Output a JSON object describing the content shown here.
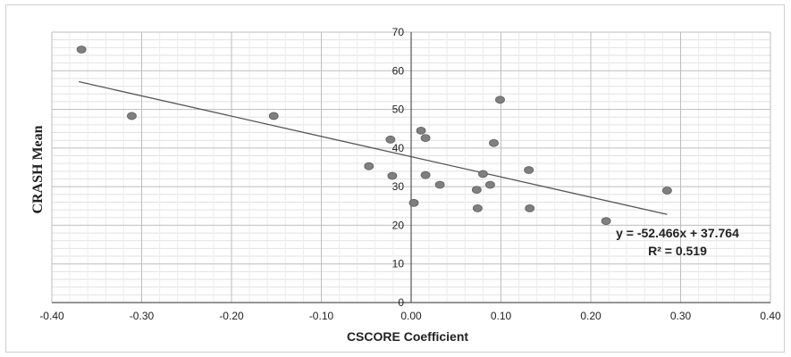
{
  "chart_data": {
    "type": "scatter",
    "xlabel": "CSCORE Coefficient",
    "ylabel": "CRASH Mean",
    "xlim": [
      -0.4,
      0.4
    ],
    "ylim": [
      0,
      70
    ],
    "x_ticks": [
      "-0.40",
      "-0.30",
      "-0.20",
      "-0.10",
      "0.00",
      "0.10",
      "0.20",
      "0.30",
      "0.40"
    ],
    "x_tick_values": [
      -0.4,
      -0.3,
      -0.2,
      -0.1,
      0.0,
      0.1,
      0.2,
      0.3,
      0.4
    ],
    "y_ticks": [
      "0",
      "10",
      "20",
      "30",
      "40",
      "50",
      "60",
      "70"
    ],
    "y_tick_values": [
      0,
      10,
      20,
      30,
      40,
      50,
      60,
      70
    ],
    "grid": true,
    "series": [
      {
        "points": [
          {
            "x": -0.367,
            "y": 65.5
          },
          {
            "x": -0.311,
            "y": 48.3
          },
          {
            "x": -0.153,
            "y": 48.3
          },
          {
            "x": -0.047,
            "y": 35.3
          },
          {
            "x": -0.023,
            "y": 42.2
          },
          {
            "x": -0.021,
            "y": 32.8
          },
          {
            "x": 0.003,
            "y": 25.8
          },
          {
            "x": 0.011,
            "y": 44.5
          },
          {
            "x": 0.016,
            "y": 42.6
          },
          {
            "x": 0.016,
            "y": 33.0
          },
          {
            "x": 0.032,
            "y": 30.5
          },
          {
            "x": 0.073,
            "y": 29.2
          },
          {
            "x": 0.074,
            "y": 24.4
          },
          {
            "x": 0.08,
            "y": 33.3
          },
          {
            "x": 0.088,
            "y": 30.5
          },
          {
            "x": 0.092,
            "y": 41.3
          },
          {
            "x": 0.099,
            "y": 52.5
          },
          {
            "x": 0.131,
            "y": 34.3
          },
          {
            "x": 0.132,
            "y": 24.4
          },
          {
            "x": 0.217,
            "y": 21.1
          },
          {
            "x": 0.285,
            "y": 29.0
          }
        ],
        "color": "#7f7f7f"
      }
    ],
    "trendline": {
      "slope": -52.466,
      "intercept": 37.764,
      "x_range": [
        -0.37,
        0.285
      ],
      "color": "#555555"
    },
    "annotations": {
      "equation": "y = -52.466x + 37.764",
      "r_squared": "R² = 0.519"
    }
  }
}
